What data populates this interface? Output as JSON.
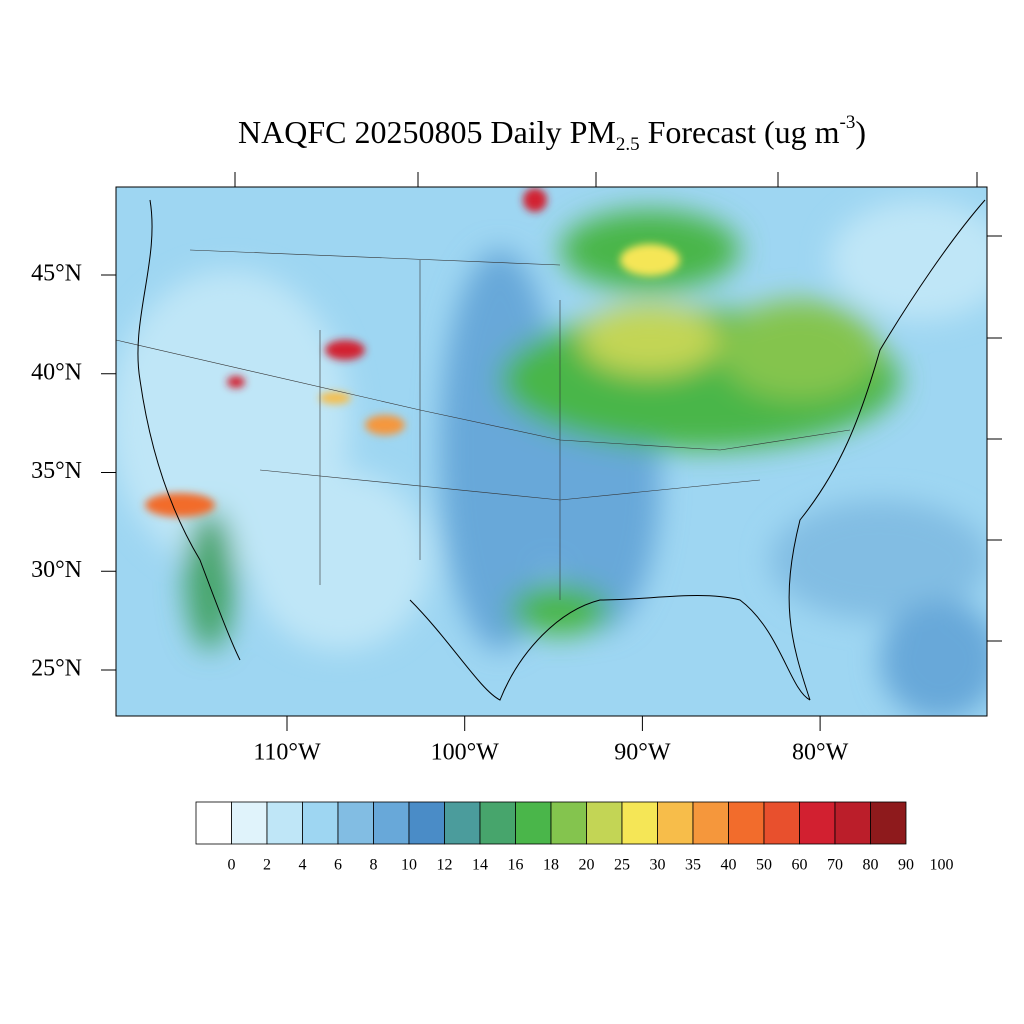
{
  "title": {
    "main": "NAQFC 20250805 Daily PM",
    "subscript": "2.5",
    "middle": " Forecast (ug m",
    "superscript": "-3",
    "end": ")"
  },
  "map": {
    "lat_ticks": [
      {
        "value": 45,
        "label": "45°N"
      },
      {
        "value": 40,
        "label": "40°N"
      },
      {
        "value": 35,
        "label": "35°N"
      },
      {
        "value": 30,
        "label": "30°N"
      },
      {
        "value": 25,
        "label": "25°N"
      }
    ],
    "lon_ticks": [
      {
        "value": 110,
        "label": "110°W"
      },
      {
        "value": 100,
        "label": "100°W"
      },
      {
        "value": 90,
        "label": "90°W"
      },
      {
        "value": 80,
        "label": "80°W"
      }
    ]
  },
  "colorbar": {
    "colors": [
      "#ffffff",
      "#e0f3fb",
      "#bfe6f7",
      "#9ed6f2",
      "#82bde3",
      "#68a8d9",
      "#4a8cc7",
      "#4b9c9c",
      "#47a56c",
      "#4ab64a",
      "#84c44e",
      "#c3d555",
      "#f5e656",
      "#f7bd4a",
      "#f5973c",
      "#f26c2c",
      "#e8502d",
      "#d22030",
      "#bb1e2a",
      "#8e1a1c"
    ],
    "labels": [
      0,
      2,
      4,
      6,
      8,
      10,
      12,
      14,
      16,
      18,
      20,
      25,
      30,
      35,
      40,
      50,
      60,
      70,
      80,
      90,
      100
    ]
  }
}
